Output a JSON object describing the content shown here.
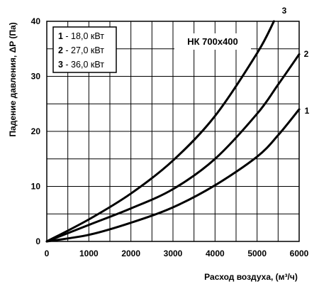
{
  "chart_data": {
    "type": "line",
    "title": "НК 700х400",
    "xlabel": "Расход воздуха, (м³/ч)",
    "ylabel": "Падение давления, ΔP (Па)",
    "xlim": [
      0,
      6000
    ],
    "ylim": [
      0,
      40
    ],
    "x_ticks": [
      0,
      1000,
      2000,
      3000,
      4000,
      5000,
      6000
    ],
    "y_ticks": [
      0,
      10,
      20,
      30,
      40
    ],
    "grid": true,
    "legend_position": "top-left",
    "legend": [
      {
        "num": "1",
        "text": " - 18,0 кВт"
      },
      {
        "num": "2",
        "text": " - 27,0 кВт"
      },
      {
        "num": "3",
        "text": " - 36,0 кВт"
      }
    ],
    "series": [
      {
        "name": "1",
        "x": [
          0,
          1000,
          2000,
          3000,
          4000,
          5000,
          5500,
          6000
        ],
        "y": [
          0,
          1.2,
          3.4,
          6.2,
          10.2,
          15.4,
          19.3,
          24.0
        ]
      },
      {
        "name": "2",
        "x": [
          0,
          1000,
          2000,
          3000,
          4000,
          5000,
          5500,
          6000
        ],
        "y": [
          0,
          3.0,
          6.0,
          9.5,
          15.0,
          23.2,
          28.5,
          34.0
        ]
      },
      {
        "name": "3",
        "x": [
          0,
          1000,
          2000,
          3000,
          4000,
          5000,
          5400
        ],
        "y": [
          0,
          4.0,
          8.7,
          14.7,
          22.8,
          34.2,
          40.0
        ]
      }
    ],
    "colors": {
      "curve": "#000000",
      "grid": "#000000"
    }
  }
}
